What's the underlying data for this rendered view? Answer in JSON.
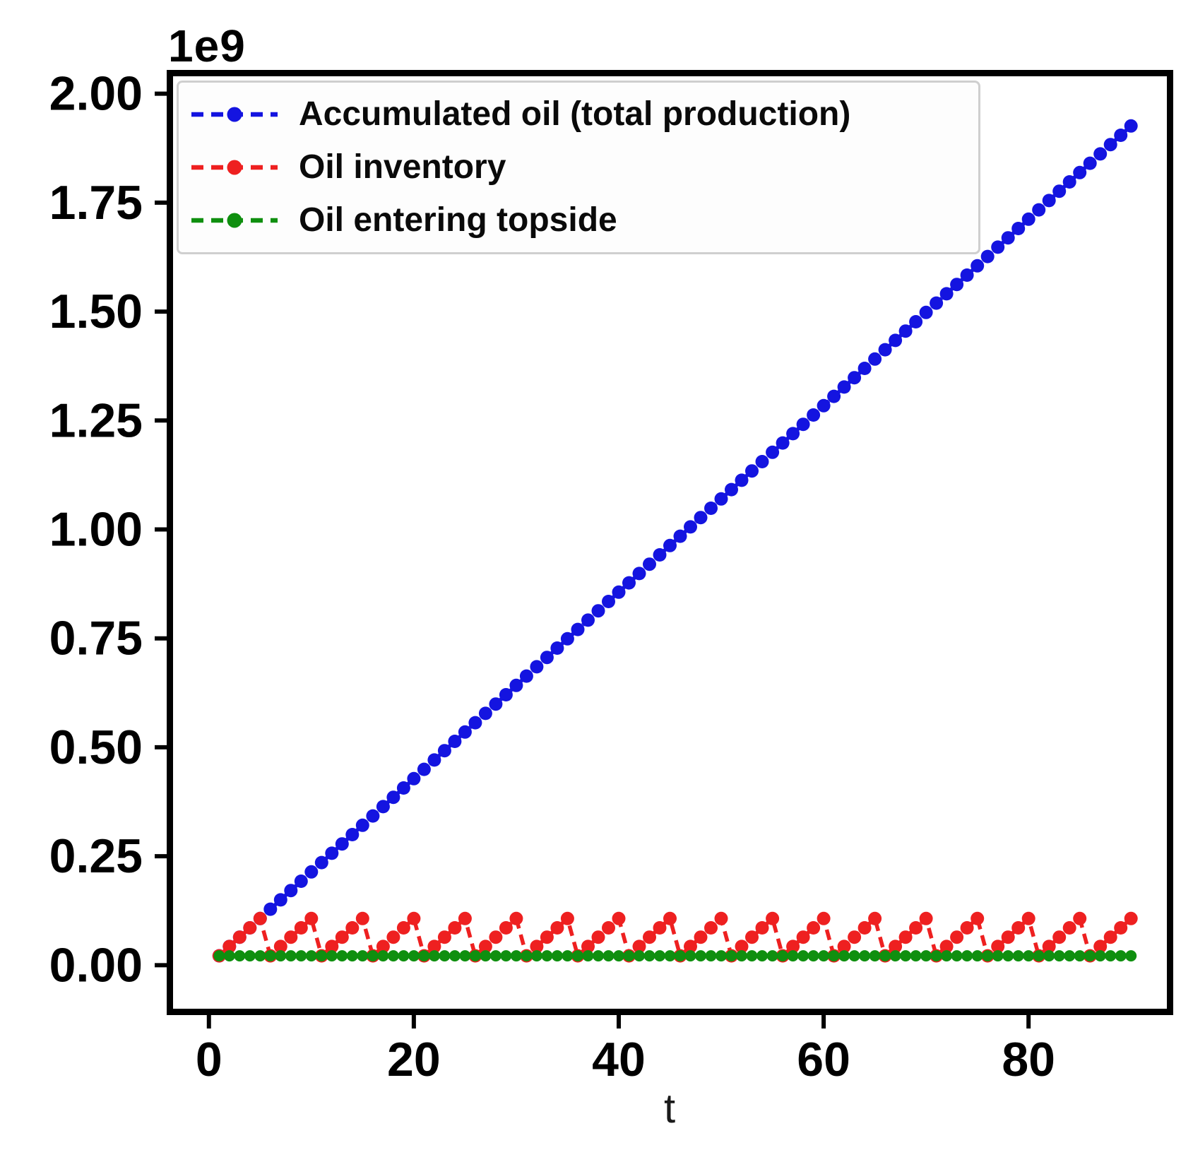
{
  "figure": {
    "background": "#ffffff",
    "axis_color": "#000000",
    "tick_text_color": "#000000",
    "legend_border_color": "#cfcfcf"
  },
  "chart_data": {
    "type": "line",
    "title": "",
    "xlabel": "t",
    "ylabel": "",
    "y_offset_text": "1e9",
    "y_axis_multiplier": 1000000000,
    "values_unit": "1e9",
    "grid": false,
    "legend_position": "upper left",
    "xlim": [
      -3.5,
      93.5
    ],
    "ylim": [
      -0.1,
      2.04
    ],
    "x_tick_values": [
      0,
      20,
      40,
      60,
      80
    ],
    "x_tick_labels": [
      "0",
      "20",
      "40",
      "60",
      "80"
    ],
    "y_tick_values": [
      0,
      0.25,
      0.5,
      0.75,
      1.0,
      1.25,
      1.5,
      1.75,
      2.0
    ],
    "y_tick_labels": [
      "0.00",
      "0.25",
      "0.50",
      "0.75",
      "1.00",
      "1.25",
      "1.50",
      "1.75",
      "2.00"
    ],
    "x": [
      1,
      2,
      3,
      4,
      5,
      6,
      7,
      8,
      9,
      10,
      11,
      12,
      13,
      14,
      15,
      16,
      17,
      18,
      19,
      20,
      21,
      22,
      23,
      24,
      25,
      26,
      27,
      28,
      29,
      30,
      31,
      32,
      33,
      34,
      35,
      36,
      37,
      38,
      39,
      40,
      41,
      42,
      43,
      44,
      45,
      46,
      47,
      48,
      49,
      50,
      51,
      52,
      53,
      54,
      55,
      56,
      57,
      58,
      59,
      60,
      61,
      62,
      63,
      64,
      65,
      66,
      67,
      68,
      69,
      70,
      71,
      72,
      73,
      74,
      75,
      76,
      77,
      78,
      79,
      80,
      81,
      82,
      83,
      84,
      85,
      86,
      87,
      88,
      89,
      90
    ],
    "series": [
      {
        "name": "Accumulated oil (total production)",
        "color": "#1414e0",
        "linestyle": "dashed",
        "marker": "circle",
        "marker_size": 9.5,
        "values": [
          0.0214,
          0.0428,
          0.0642,
          0.0856,
          0.107,
          0.1284,
          0.1498,
          0.1712,
          0.1926,
          0.214,
          0.2354,
          0.2568,
          0.2782,
          0.2996,
          0.321,
          0.3424,
          0.3638,
          0.3852,
          0.4066,
          0.428,
          0.4494,
          0.4708,
          0.4922,
          0.5136,
          0.535,
          0.5564,
          0.5778,
          0.5992,
          0.6206,
          0.642,
          0.6634,
          0.6848,
          0.7062,
          0.7276,
          0.749,
          0.7704,
          0.7918,
          0.8132,
          0.8346,
          0.856,
          0.8774,
          0.8988,
          0.9202,
          0.9416,
          0.963,
          0.9844,
          1.0058,
          1.0272,
          1.0486,
          1.07,
          1.0914,
          1.1128,
          1.1342,
          1.1556,
          1.177,
          1.1984,
          1.2198,
          1.2412,
          1.2626,
          1.284,
          1.3054,
          1.3268,
          1.3482,
          1.3696,
          1.391,
          1.4124,
          1.4338,
          1.4552,
          1.4766,
          1.498,
          1.5194,
          1.5408,
          1.5622,
          1.5836,
          1.605,
          1.6264,
          1.6478,
          1.6692,
          1.6906,
          1.712,
          1.7334,
          1.7548,
          1.7762,
          1.7976,
          1.819,
          1.8404,
          1.8618,
          1.8832,
          1.9046,
          1.926
        ]
      },
      {
        "name": "Oil inventory",
        "color": "#ee2020",
        "linestyle": "dashed",
        "marker": "circle",
        "marker_size": 9.5,
        "values": [
          0.0214,
          0.0428,
          0.0642,
          0.0856,
          0.107,
          0.0214,
          0.0428,
          0.0642,
          0.0856,
          0.107,
          0.0214,
          0.0428,
          0.0642,
          0.0856,
          0.107,
          0.0214,
          0.0428,
          0.0642,
          0.0856,
          0.107,
          0.0214,
          0.0428,
          0.0642,
          0.0856,
          0.107,
          0.0214,
          0.0428,
          0.0642,
          0.0856,
          0.107,
          0.0214,
          0.0428,
          0.0642,
          0.0856,
          0.107,
          0.0214,
          0.0428,
          0.0642,
          0.0856,
          0.107,
          0.0214,
          0.0428,
          0.0642,
          0.0856,
          0.107,
          0.0214,
          0.0428,
          0.0642,
          0.0856,
          0.107,
          0.0214,
          0.0428,
          0.0642,
          0.0856,
          0.107,
          0.0214,
          0.0428,
          0.0642,
          0.0856,
          0.107,
          0.0214,
          0.0428,
          0.0642,
          0.0856,
          0.107,
          0.0214,
          0.0428,
          0.0642,
          0.0856,
          0.107,
          0.0214,
          0.0428,
          0.0642,
          0.0856,
          0.107,
          0.0214,
          0.0428,
          0.0642,
          0.0856,
          0.107,
          0.0214,
          0.0428,
          0.0642,
          0.0856,
          0.107,
          0.0214,
          0.0428,
          0.0642,
          0.0856,
          0.107
        ]
      },
      {
        "name": "Oil entering topside",
        "color": "#0f8f0f",
        "linestyle": "dashed",
        "marker": "circle",
        "marker_size": 8,
        "values": [
          0.0214,
          0.0214,
          0.0214,
          0.0214,
          0.0214,
          0.0214,
          0.0214,
          0.0214,
          0.0214,
          0.0214,
          0.0214,
          0.0214,
          0.0214,
          0.0214,
          0.0214,
          0.0214,
          0.0214,
          0.0214,
          0.0214,
          0.0214,
          0.0214,
          0.0214,
          0.0214,
          0.0214,
          0.0214,
          0.0214,
          0.0214,
          0.0214,
          0.0214,
          0.0214,
          0.0214,
          0.0214,
          0.0214,
          0.0214,
          0.0214,
          0.0214,
          0.0214,
          0.0214,
          0.0214,
          0.0214,
          0.0214,
          0.0214,
          0.0214,
          0.0214,
          0.0214,
          0.0214,
          0.0214,
          0.0214,
          0.0214,
          0.0214,
          0.0214,
          0.0214,
          0.0214,
          0.0214,
          0.0214,
          0.0214,
          0.0214,
          0.0214,
          0.0214,
          0.0214,
          0.0214,
          0.0214,
          0.0214,
          0.0214,
          0.0214,
          0.0214,
          0.0214,
          0.0214,
          0.0214,
          0.0214,
          0.0214,
          0.0214,
          0.0214,
          0.0214,
          0.0214,
          0.0214,
          0.0214,
          0.0214,
          0.0214,
          0.0214,
          0.0214,
          0.0214,
          0.0214,
          0.0214,
          0.0214,
          0.0214,
          0.0214,
          0.0214,
          0.0214,
          0.0214
        ]
      }
    ]
  }
}
